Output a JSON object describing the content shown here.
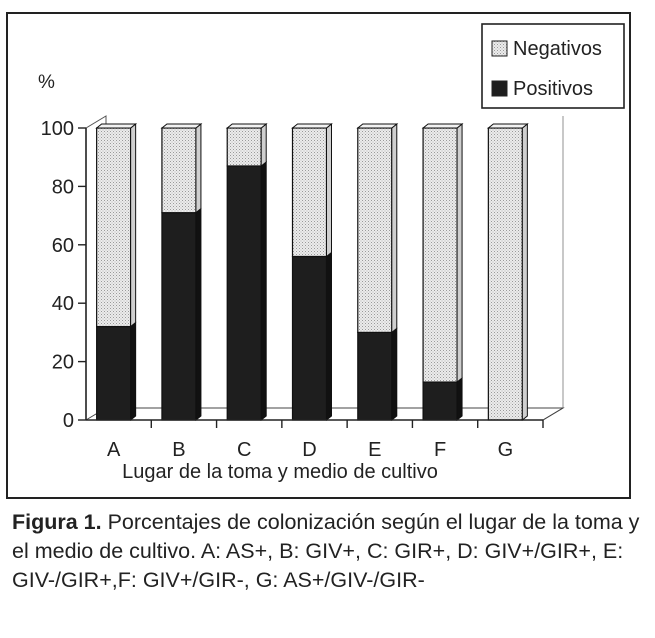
{
  "chart_data": {
    "type": "bar",
    "stacked": true,
    "style": "3d",
    "categories": [
      "A",
      "B",
      "C",
      "D",
      "E",
      "F",
      "G"
    ],
    "series": [
      {
        "name": "Positivos",
        "color": "#1e1e1e",
        "values": [
          32,
          71,
          87,
          56,
          30,
          13,
          0
        ]
      },
      {
        "name": "Negativos",
        "color": "#e6e6e6",
        "values": [
          68,
          29,
          13,
          44,
          70,
          87,
          100
        ]
      }
    ],
    "title": "",
    "xlabel": "Lugar de la toma y medio de cultivo",
    "ylabel": "%",
    "ylim": [
      0,
      100
    ],
    "yticks": [
      "0",
      "20",
      "40",
      "60",
      "80",
      "100"
    ],
    "legend": {
      "position": "top-right",
      "entries": [
        "Negativos",
        "Positivos"
      ]
    },
    "grid": false
  },
  "caption": {
    "label": "Figura 1.",
    "text": " Porcentajes de colonización según el lugar de la toma y el medio de cultivo.  A: AS+, B: GIV+, C: GIR+, D: GIV+/GIR+, E: GIV-/GIR+,F: GIV+/GIR-, G: AS+/GIV-/GIR-"
  }
}
